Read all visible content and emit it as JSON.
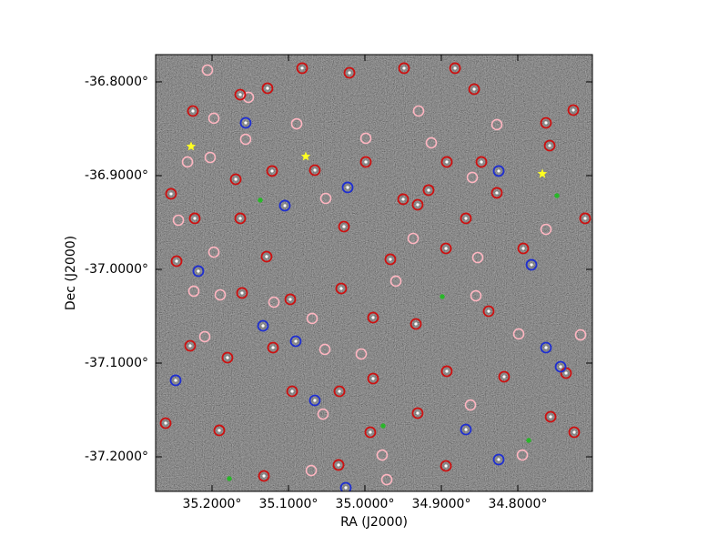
{
  "chart_data": {
    "type": "scatter",
    "xlabel": "RA (J2000)",
    "ylabel": "Dec (J2000)",
    "xlim": [
      35.2738,
      34.7024
    ],
    "ylim": [
      -37.2369,
      -36.7709
    ],
    "xticks": [
      {
        "value": 35.2,
        "label": "35.2000°"
      },
      {
        "value": 35.1,
        "label": "35.1000°"
      },
      {
        "value": 35.0,
        "label": "35.0000°"
      },
      {
        "value": 34.9,
        "label": "34.9000°"
      },
      {
        "value": 34.8,
        "label": "34.8000°"
      }
    ],
    "yticks": [
      {
        "value": -36.8,
        "label": "-36.8000°"
      },
      {
        "value": -36.9,
        "label": "-36.9000°"
      },
      {
        "value": -37.0,
        "label": "-37.0000°"
      },
      {
        "value": -37.1,
        "label": "-37.1000°"
      },
      {
        "value": -37.2,
        "label": "-37.2000°"
      }
    ],
    "series": [
      {
        "color": "#ffb6c1",
        "marker": "ring",
        "x": [
          35.206,
          35.1524,
          35.1976,
          35.156,
          35.2024,
          35.2321,
          35.244,
          35.1976,
          35.1893,
          35.2238,
          35.2095,
          35.119,
          35.069,
          35.0524,
          35.0048,
          35.0548,
          34.9774,
          34.9714,
          35.0702,
          34.9298,
          34.9131,
          34.8595,
          34.8274,
          34.8524,
          34.8548,
          34.7988,
          34.794,
          34.7631,
          34.7179,
          34.9369,
          34.9988,
          35.0893,
          35.0512,
          34.9595,
          34.8619
        ],
        "values": [
          -36.7874,
          -36.8165,
          -36.8388,
          -36.8612,
          -36.8806,
          -36.8854,
          -36.9476,
          -36.9816,
          -37.0272,
          -37.0233,
          -37.0718,
          -37.035,
          -37.0524,
          -37.0854,
          -37.0903,
          -37.1544,
          -37.1981,
          -37.2243,
          -37.2146,
          -36.8311,
          -36.865,
          -36.9019,
          -36.8456,
          -36.9874,
          -37.0282,
          -37.0689,
          -37.1981,
          -36.9573,
          -37.0699,
          -36.967,
          -36.8602,
          -36.8447,
          -36.9243,
          -37.0126,
          -37.1447
        ]
      },
      {
        "color": "#cc1111",
        "marker": "dot-ring",
        "x": [
          35.225,
          35.1631,
          35.1274,
          35.0821,
          35.0202,
          34.9488,
          34.8821,
          34.8571,
          34.7274,
          34.7631,
          34.7583,
          34.8476,
          34.8929,
          34.9167,
          34.95,
          34.9988,
          35.0655,
          35.1214,
          35.169,
          35.2536,
          35.2226,
          35.1631,
          35.0274,
          34.931,
          34.8679,
          34.8274,
          34.7119,
          35.2464,
          35.1286,
          34.9667,
          34.894,
          34.7929,
          35.1607,
          35.0976,
          35.031,
          34.9893,
          34.9333,
          34.8381,
          35.2286,
          35.1798,
          35.1202,
          34.9893,
          34.8929,
          34.8179,
          34.7369,
          35.2607,
          35.1905,
          35.0952,
          35.0333,
          34.931,
          34.9929,
          34.894,
          34.7571,
          34.7262,
          35.1321,
          35.0345
        ],
        "values": [
          -36.8311,
          -36.8136,
          -36.8068,
          -36.7854,
          -36.7903,
          -36.7854,
          -36.7854,
          -36.8078,
          -36.8301,
          -36.8437,
          -36.868,
          -36.8854,
          -36.8854,
          -36.9155,
          -36.9252,
          -36.8854,
          -36.8942,
          -36.8951,
          -36.9039,
          -36.9194,
          -36.9456,
          -36.9456,
          -36.9544,
          -36.9311,
          -36.9456,
          -36.9184,
          -36.9456,
          -36.9913,
          -36.9864,
          -36.9893,
          -36.9777,
          -36.9777,
          -37.0252,
          -37.032,
          -37.0204,
          -37.0515,
          -37.0583,
          -37.0447,
          -37.0816,
          -37.0942,
          -37.0835,
          -37.1165,
          -37.1087,
          -37.1146,
          -37.1107,
          -37.1641,
          -37.1718,
          -37.1301,
          -37.1301,
          -37.1534,
          -37.1738,
          -37.2097,
          -37.1573,
          -37.1738,
          -37.2204,
          -37.2087
        ]
      },
      {
        "color": "#1f2fd0",
        "marker": "dot-ring",
        "x": [
          35.2179,
          35.1333,
          35.0905,
          35.0226,
          34.7821,
          34.7631,
          34.744,
          35.2476,
          35.0655,
          35.025,
          34.825,
          34.8679,
          35.1048,
          35.156,
          34.825
        ],
        "values": [
          -37.0019,
          -37.0602,
          -37.0767,
          -36.9126,
          -36.9951,
          -37.0835,
          -37.1039,
          -37.1184,
          -37.1398,
          -37.233,
          -37.2029,
          -37.1709,
          -36.932,
          -36.8437,
          -36.8951
        ]
      },
      {
        "color": "#22bb22",
        "marker": "cross",
        "x": [
          34.8988,
          34.9762,
          34.7857,
          35.1369,
          35.1774,
          34.7488
        ],
        "values": [
          -37.0291,
          -37.167,
          -37.1825,
          -36.9262,
          -37.2233,
          -36.9214
        ]
      },
      {
        "color": "#ffff22",
        "marker": "star",
        "x": [
          35.2274,
          35.0774,
          34.7679
        ],
        "values": [
          -36.8689,
          -36.8796,
          -36.8981
        ]
      }
    ]
  }
}
